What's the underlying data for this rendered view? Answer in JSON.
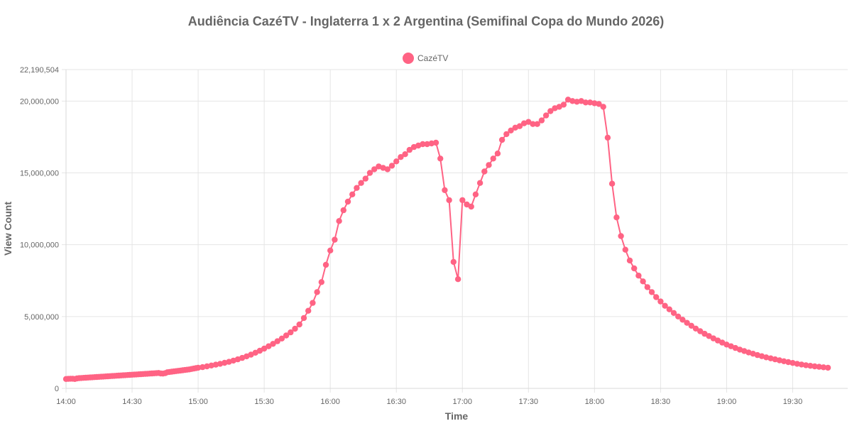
{
  "chart_data": {
    "type": "line",
    "title": "Audiência CazéTV - Inglaterra 1 x 2 Argentina (Semifinal Copa do Mundo 2026)",
    "xlabel": "Time",
    "ylabel": "View Count",
    "legend_position": "top-center",
    "grid": true,
    "ylim": [
      0,
      22190504
    ],
    "y_ticks": [
      0,
      5000000,
      10000000,
      15000000,
      20000000,
      22190504
    ],
    "y_tick_labels": [
      "0",
      "5,000,000",
      "10,000,000",
      "15,000,000",
      "20,000,000",
      "22,190,504"
    ],
    "x_ticks": [
      "14:00",
      "14:30",
      "15:00",
      "15:30",
      "16:00",
      "16:30",
      "17:00",
      "17:30",
      "18:00",
      "18:30",
      "19:00",
      "19:30"
    ],
    "x_start": "14:00",
    "x_end": "19:55",
    "series": [
      {
        "name": "CazéTV",
        "color": "#ff6384",
        "points": [
          [
            "14:00",
            650000
          ],
          [
            "14:01",
            660000
          ],
          [
            "14:02",
            670000
          ],
          [
            "14:03",
            670000
          ],
          [
            "14:04",
            650000
          ],
          [
            "14:05",
            690000
          ],
          [
            "14:06",
            710000
          ],
          [
            "14:07",
            720000
          ],
          [
            "14:08",
            730000
          ],
          [
            "14:09",
            740000
          ],
          [
            "14:10",
            750000
          ],
          [
            "14:11",
            760000
          ],
          [
            "14:12",
            770000
          ],
          [
            "14:13",
            780000
          ],
          [
            "14:14",
            790000
          ],
          [
            "14:15",
            800000
          ],
          [
            "14:16",
            810000
          ],
          [
            "14:17",
            820000
          ],
          [
            "14:18",
            830000
          ],
          [
            "14:19",
            840000
          ],
          [
            "14:20",
            850000
          ],
          [
            "14:21",
            860000
          ],
          [
            "14:22",
            870000
          ],
          [
            "14:23",
            880000
          ],
          [
            "14:24",
            890000
          ],
          [
            "14:25",
            900000
          ],
          [
            "14:26",
            910000
          ],
          [
            "14:27",
            920000
          ],
          [
            "14:28",
            930000
          ],
          [
            "14:29",
            940000
          ],
          [
            "14:30",
            950000
          ],
          [
            "14:31",
            960000
          ],
          [
            "14:32",
            970000
          ],
          [
            "14:33",
            980000
          ],
          [
            "14:34",
            990000
          ],
          [
            "14:35",
            1000000
          ],
          [
            "14:36",
            1010000
          ],
          [
            "14:37",
            1020000
          ],
          [
            "14:38",
            1030000
          ],
          [
            "14:39",
            1040000
          ],
          [
            "14:40",
            1050000
          ],
          [
            "14:41",
            1060000
          ],
          [
            "14:42",
            1070000
          ],
          [
            "14:43",
            1040000
          ],
          [
            "14:44",
            1030000
          ],
          [
            "14:45",
            1060000
          ],
          [
            "14:46",
            1120000
          ],
          [
            "14:47",
            1140000
          ],
          [
            "14:48",
            1160000
          ],
          [
            "14:49",
            1180000
          ],
          [
            "14:50",
            1200000
          ],
          [
            "14:51",
            1220000
          ],
          [
            "14:52",
            1240000
          ],
          [
            "14:53",
            1260000
          ],
          [
            "14:54",
            1280000
          ],
          [
            "14:55",
            1300000
          ],
          [
            "14:56",
            1320000
          ],
          [
            "14:57",
            1350000
          ],
          [
            "14:58",
            1380000
          ],
          [
            "14:59",
            1410000
          ],
          [
            "15:00",
            1440000
          ],
          [
            "15:02",
            1480000
          ],
          [
            "15:04",
            1530000
          ],
          [
            "15:06",
            1590000
          ],
          [
            "15:08",
            1650000
          ],
          [
            "15:10",
            1710000
          ],
          [
            "15:12",
            1780000
          ],
          [
            "15:14",
            1850000
          ],
          [
            "15:16",
            1930000
          ],
          [
            "15:18",
            2020000
          ],
          [
            "15:20",
            2120000
          ],
          [
            "15:22",
            2230000
          ],
          [
            "15:24",
            2350000
          ],
          [
            "15:26",
            2480000
          ],
          [
            "15:28",
            2620000
          ],
          [
            "15:30",
            2770000
          ],
          [
            "15:32",
            2930000
          ],
          [
            "15:34",
            3100000
          ],
          [
            "15:36",
            3280000
          ],
          [
            "15:38",
            3470000
          ],
          [
            "15:40",
            3680000
          ],
          [
            "15:42",
            3900000
          ],
          [
            "15:44",
            4150000
          ],
          [
            "15:46",
            4450000
          ],
          [
            "15:48",
            4900000
          ],
          [
            "15:50",
            5400000
          ],
          [
            "15:52",
            5950000
          ],
          [
            "15:54",
            6700000
          ],
          [
            "15:56",
            7400000
          ],
          [
            "15:58",
            8600000
          ],
          [
            "16:00",
            9600000
          ],
          [
            "16:02",
            10350000
          ],
          [
            "16:04",
            11650000
          ],
          [
            "16:06",
            12400000
          ],
          [
            "16:08",
            13000000
          ],
          [
            "16:10",
            13500000
          ],
          [
            "16:12",
            13950000
          ],
          [
            "16:14",
            14300000
          ],
          [
            "16:16",
            14600000
          ],
          [
            "16:18",
            15000000
          ],
          [
            "16:20",
            15250000
          ],
          [
            "16:22",
            15450000
          ],
          [
            "16:24",
            15350000
          ],
          [
            "16:26",
            15250000
          ],
          [
            "16:28",
            15500000
          ],
          [
            "16:30",
            15800000
          ],
          [
            "16:32",
            16100000
          ],
          [
            "16:34",
            16300000
          ],
          [
            "16:36",
            16600000
          ],
          [
            "16:38",
            16800000
          ],
          [
            "16:40",
            16900000
          ],
          [
            "16:42",
            17000000
          ],
          [
            "16:44",
            17000000
          ],
          [
            "16:46",
            17050000
          ],
          [
            "16:48",
            17100000
          ],
          [
            "16:50",
            16000000
          ],
          [
            "16:52",
            13800000
          ],
          [
            "16:54",
            13100000
          ],
          [
            "16:56",
            8800000
          ],
          [
            "16:58",
            7600000
          ],
          [
            "17:00",
            13100000
          ],
          [
            "17:02",
            12800000
          ],
          [
            "17:04",
            12650000
          ],
          [
            "17:06",
            13500000
          ],
          [
            "17:08",
            14300000
          ],
          [
            "17:10",
            15100000
          ],
          [
            "17:12",
            15550000
          ],
          [
            "17:14",
            16000000
          ],
          [
            "17:16",
            16350000
          ],
          [
            "17:18",
            17300000
          ],
          [
            "17:20",
            17700000
          ],
          [
            "17:22",
            17950000
          ],
          [
            "17:24",
            18150000
          ],
          [
            "17:26",
            18250000
          ],
          [
            "17:28",
            18450000
          ],
          [
            "17:30",
            18550000
          ],
          [
            "17:32",
            18400000
          ],
          [
            "17:34",
            18400000
          ],
          [
            "17:36",
            18650000
          ],
          [
            "17:38",
            19000000
          ],
          [
            "17:40",
            19300000
          ],
          [
            "17:42",
            19500000
          ],
          [
            "17:44",
            19600000
          ],
          [
            "17:46",
            19750000
          ],
          [
            "17:48",
            20100000
          ],
          [
            "17:50",
            20000000
          ],
          [
            "17:52",
            19950000
          ],
          [
            "17:54",
            20000000
          ],
          [
            "17:56",
            19900000
          ],
          [
            "17:58",
            19900000
          ],
          [
            "18:00",
            19850000
          ],
          [
            "18:02",
            19800000
          ],
          [
            "18:04",
            19600000
          ],
          [
            "18:06",
            17450000
          ],
          [
            "18:08",
            14250000
          ],
          [
            "18:10",
            11900000
          ],
          [
            "18:12",
            10600000
          ],
          [
            "18:14",
            9650000
          ],
          [
            "18:16",
            8900000
          ],
          [
            "18:18",
            8350000
          ],
          [
            "18:20",
            7850000
          ],
          [
            "18:22",
            7450000
          ],
          [
            "18:24",
            7050000
          ],
          [
            "18:26",
            6700000
          ],
          [
            "18:28",
            6350000
          ],
          [
            "18:30",
            6050000
          ],
          [
            "18:32",
            5750000
          ],
          [
            "18:34",
            5500000
          ],
          [
            "18:36",
            5250000
          ],
          [
            "18:38",
            5000000
          ],
          [
            "18:40",
            4780000
          ],
          [
            "18:42",
            4560000
          ],
          [
            "18:44",
            4360000
          ],
          [
            "18:46",
            4160000
          ],
          [
            "18:48",
            3980000
          ],
          [
            "18:50",
            3800000
          ],
          [
            "18:52",
            3640000
          ],
          [
            "18:54",
            3480000
          ],
          [
            "18:56",
            3330000
          ],
          [
            "18:58",
            3190000
          ],
          [
            "19:00",
            3050000
          ],
          [
            "19:02",
            2930000
          ],
          [
            "19:04",
            2810000
          ],
          [
            "19:06",
            2700000
          ],
          [
            "19:08",
            2600000
          ],
          [
            "19:10",
            2500000
          ],
          [
            "19:12",
            2410000
          ],
          [
            "19:14",
            2320000
          ],
          [
            "19:16",
            2240000
          ],
          [
            "19:18",
            2160000
          ],
          [
            "19:20",
            2090000
          ],
          [
            "19:22",
            2020000
          ],
          [
            "19:24",
            1950000
          ],
          [
            "19:26",
            1890000
          ],
          [
            "19:28",
            1830000
          ],
          [
            "19:30",
            1770000
          ],
          [
            "19:32",
            1710000
          ],
          [
            "19:34",
            1660000
          ],
          [
            "19:36",
            1610000
          ],
          [
            "19:38",
            1570000
          ],
          [
            "19:40",
            1530000
          ],
          [
            "19:42",
            1500000
          ],
          [
            "19:44",
            1470000
          ],
          [
            "19:46",
            1440000
          ]
        ]
      }
    ]
  }
}
